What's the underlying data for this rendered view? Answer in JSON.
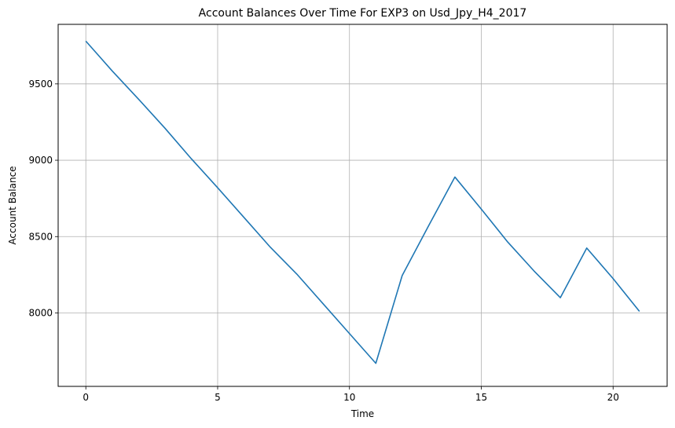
{
  "chart_data": {
    "type": "line",
    "title": "Account Balances Over Time For EXP3 on Usd_Jpy_H4_2017",
    "xlabel": "Time",
    "ylabel": "Account Balance",
    "xlim": [
      -1.05,
      22.05
    ],
    "ylim": [
      7519,
      9890
    ],
    "xticks": [
      0,
      5,
      10,
      15,
      20
    ],
    "xtick_labels": [
      "0",
      "5",
      "10",
      "15",
      "20"
    ],
    "yticks": [
      8000,
      8500,
      9000,
      9500
    ],
    "ytick_labels": [
      "8000",
      "8500",
      "9000",
      "9500"
    ],
    "grid": true,
    "series": [
      {
        "color": "#1f77b4",
        "x": [
          0,
          1,
          2,
          3,
          4,
          5,
          6,
          7,
          8,
          9,
          10,
          11,
          12,
          13,
          14,
          15,
          16,
          17,
          18,
          19,
          20,
          21
        ],
        "values": [
          9780,
          9585,
          9400,
          9210,
          9010,
          8820,
          8625,
          8430,
          8255,
          8060,
          7865,
          7670,
          8245,
          8570,
          8890,
          8680,
          8465,
          8275,
          8100,
          8425,
          8225,
          8010
        ]
      }
    ]
  }
}
